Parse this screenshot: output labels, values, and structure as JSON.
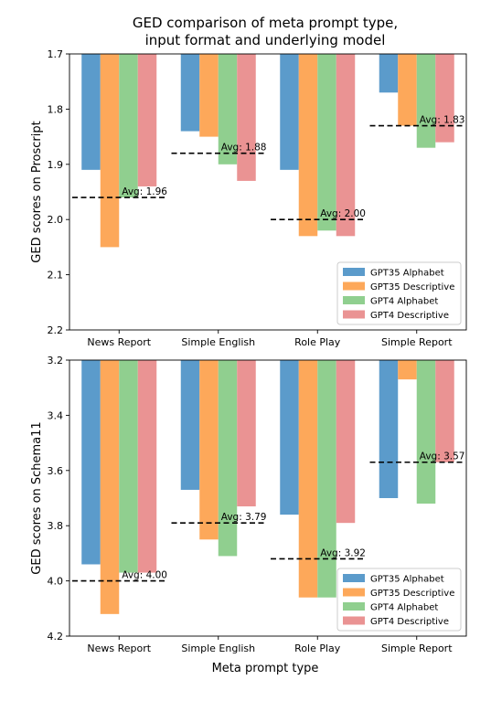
{
  "figure": {
    "title_line1": "GED comparison of meta prompt type,",
    "title_line2": "input format and underlying model",
    "xlabel": "Meta prompt type"
  },
  "colors": {
    "GPT35 Alphabet": "#5b9bcb",
    "GPT35 Descriptive": "#fda85a",
    "GPT4 Alphabet": "#90cf8f",
    "GPT4 Descriptive": "#ea9393"
  },
  "chart_data": [
    {
      "type": "bar",
      "ylabel": "GED scores on Proscript",
      "ylim": [
        1.7,
        2.2
      ],
      "y_inverted": true,
      "yticks": [
        "1.7",
        "1.8",
        "1.9",
        "2.0",
        "2.1",
        "2.2"
      ],
      "categories": [
        "News Report",
        "Simple English",
        "Role Play",
        "Simple Report"
      ],
      "series": [
        {
          "name": "GPT35 Alphabet",
          "values": [
            1.91,
            1.84,
            1.91,
            1.77
          ]
        },
        {
          "name": "GPT35 Descriptive",
          "values": [
            2.05,
            1.85,
            2.03,
            1.83
          ]
        },
        {
          "name": "GPT4 Alphabet",
          "values": [
            1.96,
            1.9,
            2.02,
            1.87
          ]
        },
        {
          "name": "GPT4 Descriptive",
          "values": [
            1.94,
            1.93,
            2.03,
            1.86
          ]
        }
      ],
      "averages": [
        1.96,
        1.88,
        2.0,
        1.83
      ],
      "avg_labels": [
        "Avg: 1.96",
        "Avg: 1.88",
        "Avg: 2.00",
        "Avg: 1.83"
      ],
      "legend": "bottom-right"
    },
    {
      "type": "bar",
      "ylabel": "GED scores on Schema11",
      "ylim": [
        3.2,
        4.2
      ],
      "y_inverted": true,
      "yticks": [
        "3.2",
        "3.4",
        "3.6",
        "3.8",
        "4.0",
        "4.2"
      ],
      "categories": [
        "News Report",
        "Simple English",
        "Role Play",
        "Simple Report"
      ],
      "series": [
        {
          "name": "GPT35 Alphabet",
          "values": [
            3.94,
            3.67,
            3.76,
            3.7
          ]
        },
        {
          "name": "GPT35 Descriptive",
          "values": [
            4.12,
            3.85,
            4.06,
            3.27
          ]
        },
        {
          "name": "GPT4 Alphabet",
          "values": [
            3.97,
            3.91,
            4.06,
            3.72
          ]
        },
        {
          "name": "GPT4 Descriptive",
          "values": [
            3.97,
            3.73,
            3.79,
            3.57
          ]
        }
      ],
      "averages": [
        4.0,
        3.79,
        3.92,
        3.57
      ],
      "avg_labels": [
        "Avg: 4.00",
        "Avg: 3.79",
        "Avg: 3.92",
        "Avg: 3.57"
      ],
      "legend": "bottom-right"
    }
  ]
}
